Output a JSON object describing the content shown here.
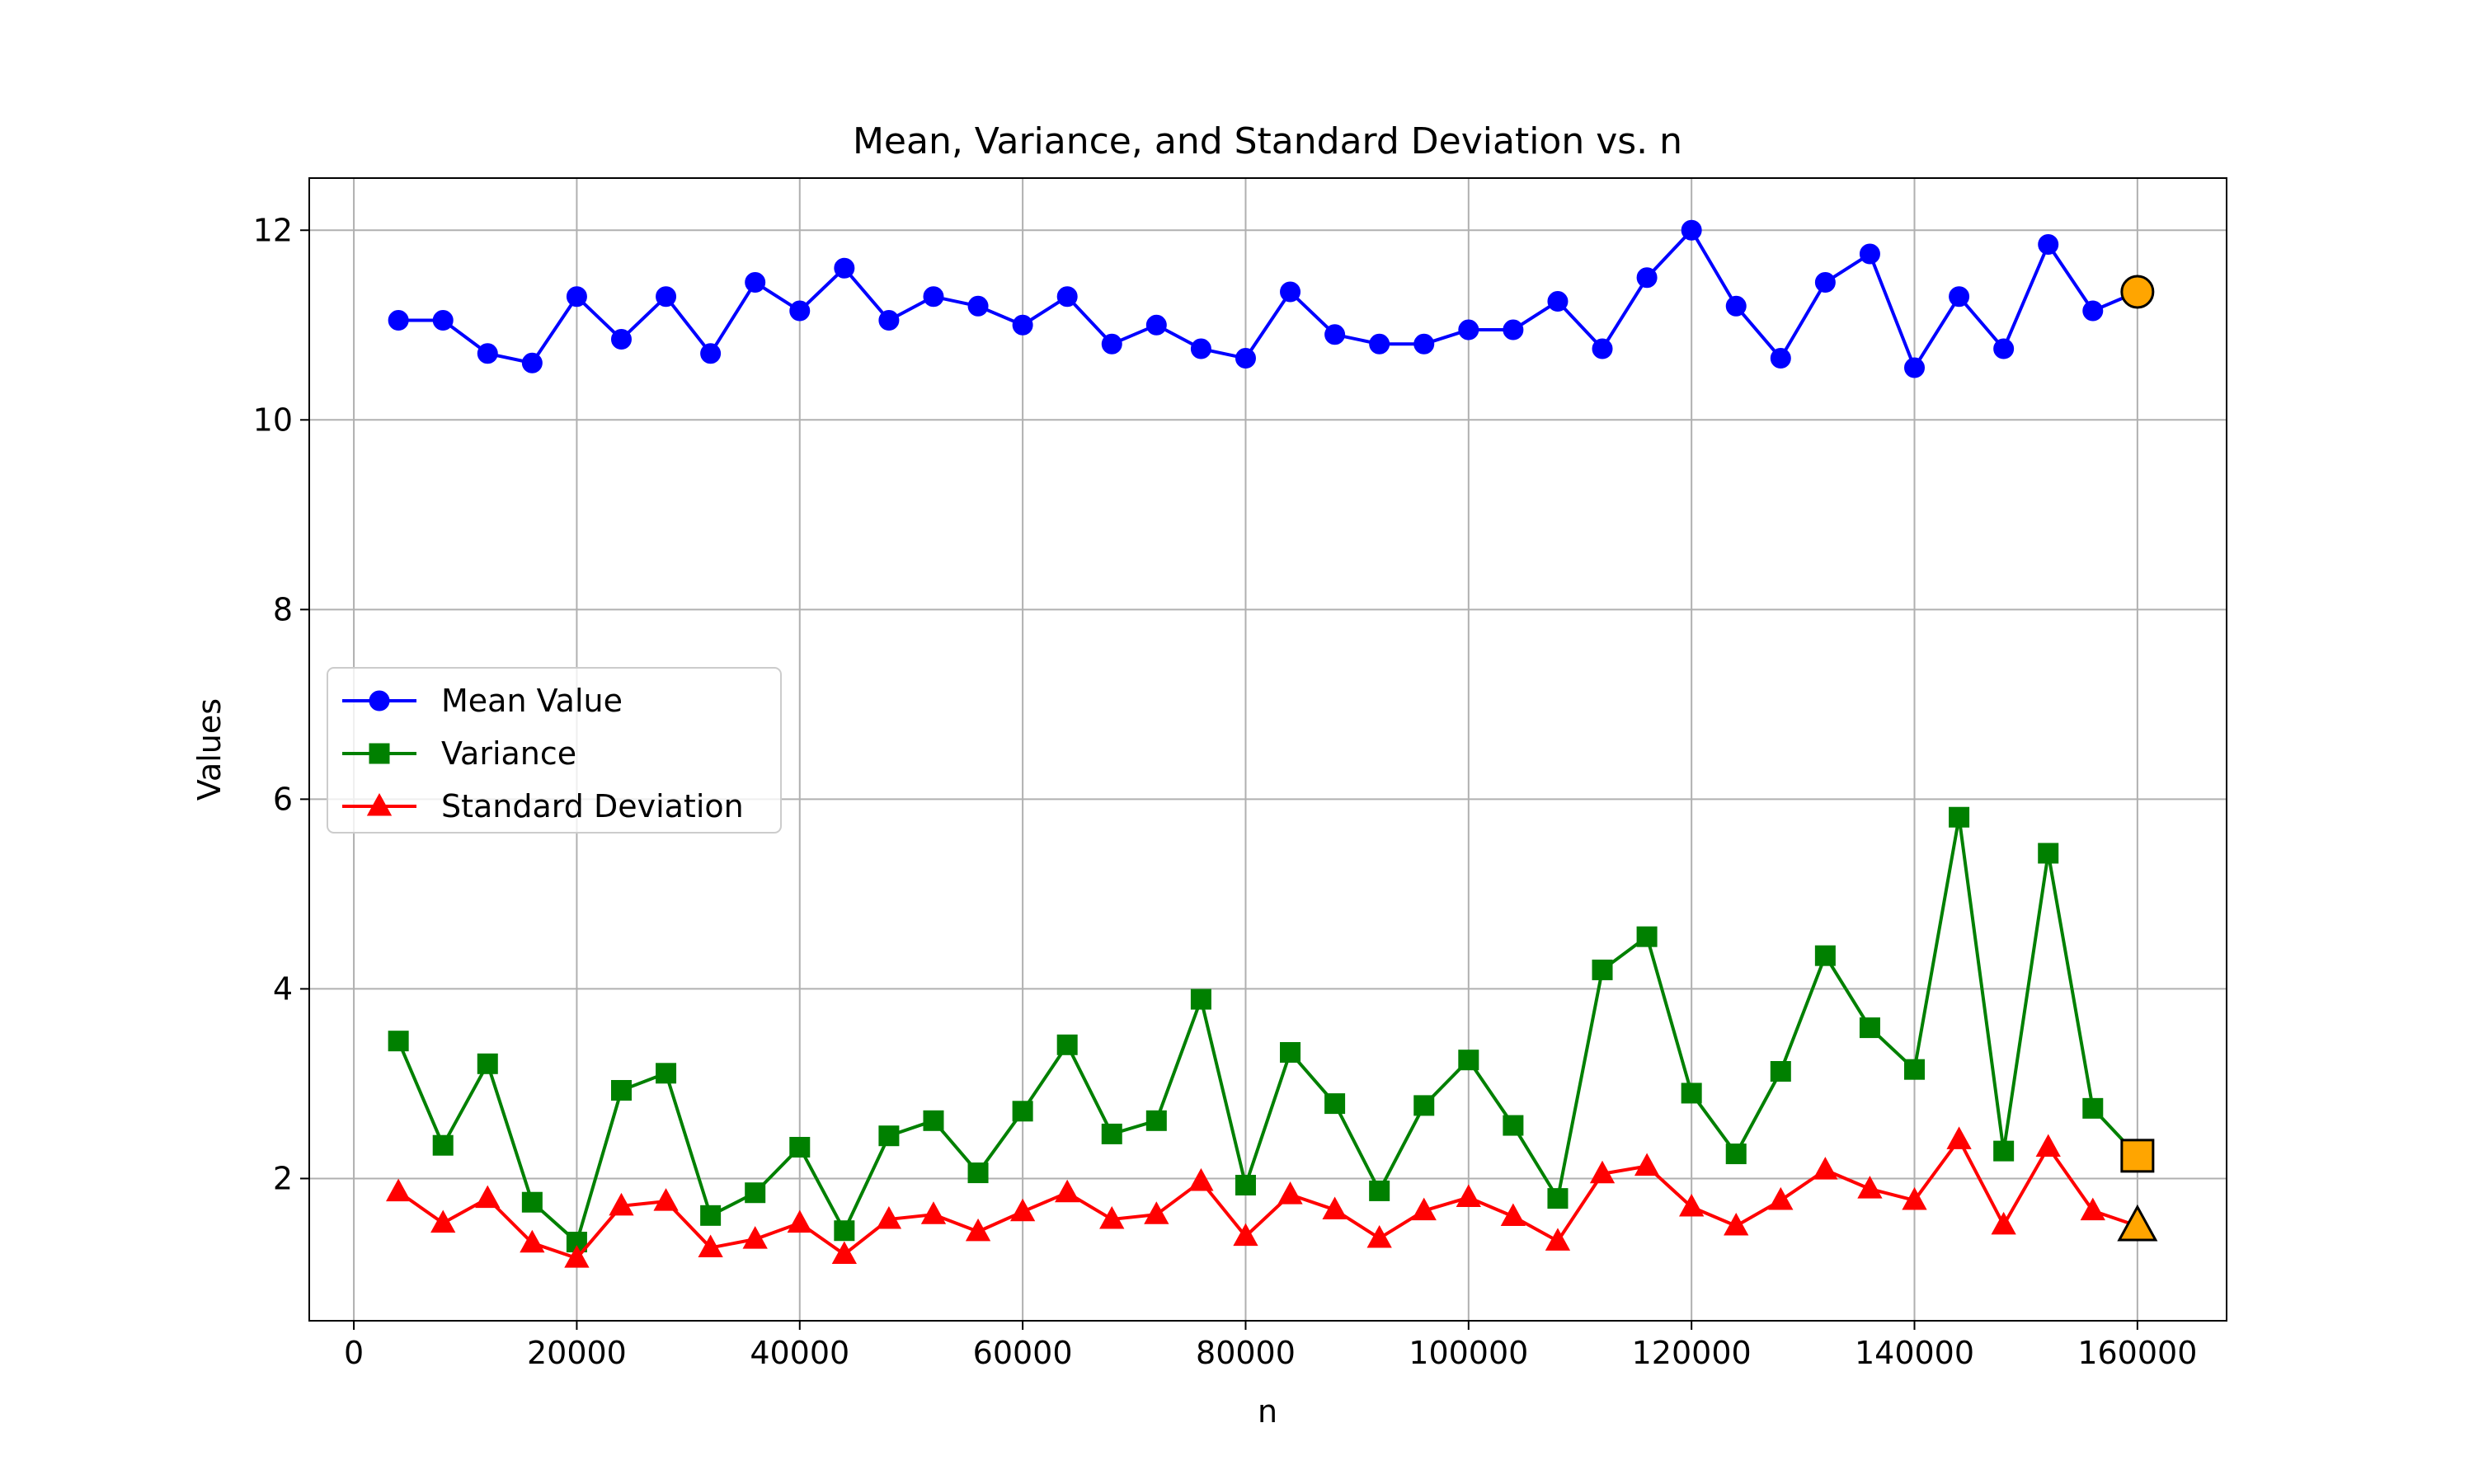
{
  "chart_data": {
    "type": "line",
    "title": "Mean, Variance, and Standard Deviation vs. n",
    "xlabel": "n",
    "ylabel": "Values",
    "xlim": [
      -4000,
      168000
    ],
    "ylim": [
      0.5,
      12.55
    ],
    "xticks": [
      0,
      20000,
      40000,
      60000,
      80000,
      100000,
      120000,
      140000,
      160000
    ],
    "yticks": [
      2,
      4,
      6,
      8,
      10,
      12
    ],
    "grid": true,
    "legend_position": "center-left",
    "x": [
      4000,
      8000,
      12000,
      16000,
      20000,
      24000,
      28000,
      32000,
      36000,
      40000,
      44000,
      48000,
      52000,
      56000,
      60000,
      64000,
      68000,
      72000,
      76000,
      80000,
      84000,
      88000,
      92000,
      96000,
      100000,
      104000,
      108000,
      112000,
      116000,
      120000,
      124000,
      128000,
      132000,
      136000,
      140000,
      144000,
      148000,
      152000,
      156000,
      160000
    ],
    "series": [
      {
        "name": "Mean Value",
        "color": "#0000ff",
        "marker": "circle",
        "values": [
          11.05,
          11.05,
          10.7,
          10.6,
          11.3,
          10.85,
          11.3,
          10.7,
          11.45,
          11.15,
          11.6,
          11.05,
          11.3,
          11.2,
          11.0,
          11.3,
          10.8,
          11.0,
          10.75,
          10.65,
          11.35,
          10.9,
          10.8,
          10.8,
          10.95,
          10.95,
          11.25,
          10.75,
          11.5,
          12.0,
          11.2,
          10.65,
          11.45,
          11.75,
          10.55,
          11.3,
          10.75,
          11.85,
          11.15,
          11.35
        ]
      },
      {
        "name": "Variance",
        "color": "#008000",
        "marker": "square",
        "values": [
          3.45,
          2.35,
          3.21,
          1.75,
          1.33,
          2.93,
          3.11,
          1.61,
          1.85,
          2.33,
          1.45,
          2.45,
          2.61,
          2.06,
          2.71,
          3.41,
          2.47,
          2.61,
          3.89,
          1.93,
          3.33,
          2.79,
          1.87,
          2.77,
          3.25,
          2.56,
          1.79,
          4.2,
          4.55,
          2.9,
          2.26,
          3.13,
          4.35,
          3.59,
          3.15,
          5.81,
          2.29,
          5.43,
          2.74,
          2.24
        ]
      },
      {
        "name": "Standard Deviation",
        "color": "#ff0000",
        "marker": "triangle",
        "values": [
          1.86,
          1.53,
          1.79,
          1.32,
          1.16,
          1.71,
          1.76,
          1.27,
          1.36,
          1.53,
          1.2,
          1.57,
          1.62,
          1.44,
          1.65,
          1.85,
          1.57,
          1.62,
          1.97,
          1.39,
          1.83,
          1.67,
          1.37,
          1.66,
          1.8,
          1.6,
          1.34,
          2.05,
          2.13,
          1.7,
          1.5,
          1.77,
          2.09,
          1.89,
          1.77,
          2.41,
          1.51,
          2.33,
          1.66,
          1.5
        ]
      }
    ],
    "highlight": {
      "x": 160000,
      "color": "#ffa500",
      "points": [
        {
          "series": "Mean Value",
          "value": 11.35,
          "marker": "circle"
        },
        {
          "series": "Variance",
          "value": 2.24,
          "marker": "square"
        },
        {
          "series": "Standard Deviation",
          "value": 1.5,
          "marker": "triangle"
        }
      ]
    }
  }
}
